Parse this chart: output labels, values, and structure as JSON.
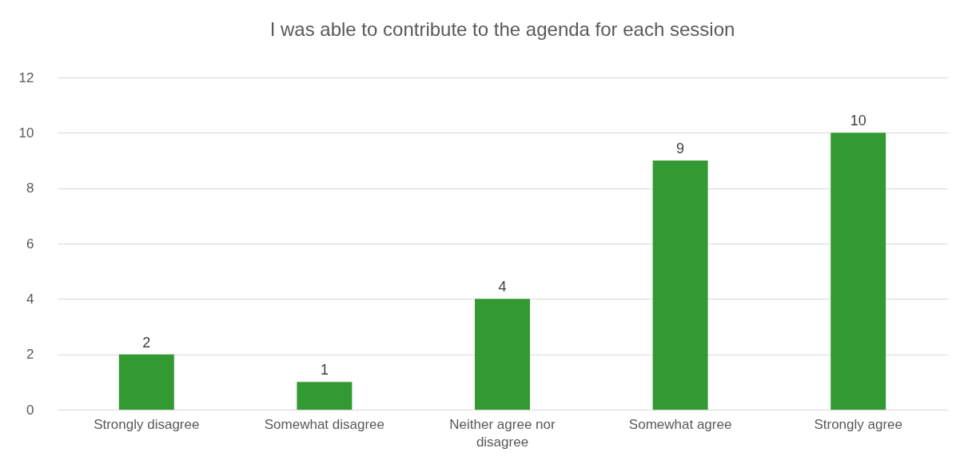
{
  "chart_data": {
    "type": "bar",
    "title": "I was able to contribute to the agenda for each session",
    "categories": [
      "Strongly disagree",
      "Somewhat disagree",
      "Neither agree nor disagree",
      "Somewhat agree",
      "Strongly agree"
    ],
    "values": [
      2,
      1,
      4,
      9,
      10
    ],
    "color": "#339933",
    "ylim": [
      0,
      12
    ],
    "yticks": [
      0,
      2,
      4,
      6,
      8,
      10,
      12
    ],
    "grid": "y",
    "data_labels": true
  }
}
